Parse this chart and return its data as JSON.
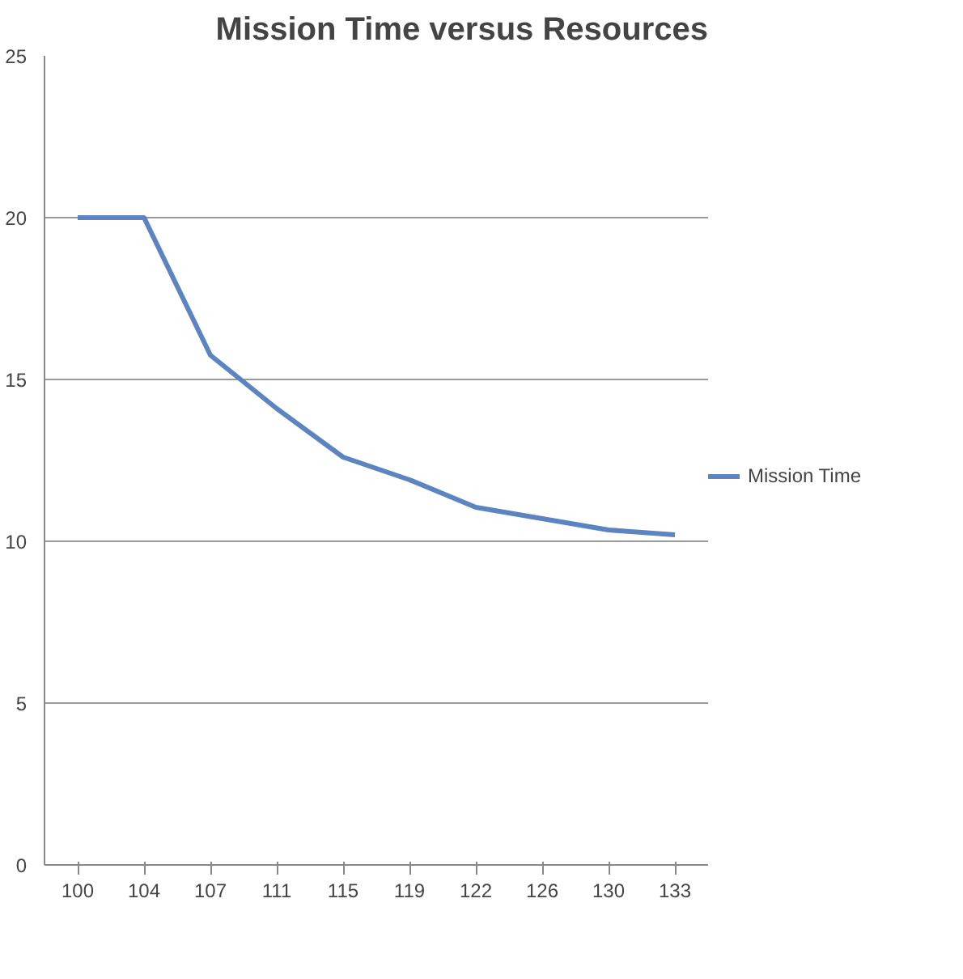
{
  "chart_data": {
    "type": "line",
    "title": "Mission Time versus Resources",
    "categories": [
      "100",
      "104",
      "107",
      "111",
      "115",
      "119",
      "122",
      "126",
      "130",
      "133"
    ],
    "series": [
      {
        "name": "Mission Time",
        "color": "#5b84c0",
        "values": [
          20,
          20,
          15.75,
          14.1,
          12.6,
          11.9,
          11.05,
          10.7,
          10.35,
          10.2
        ]
      }
    ],
    "ylim": [
      0,
      25
    ],
    "yticks": [
      0,
      5,
      10,
      15,
      20,
      25
    ],
    "grid": "y",
    "legend": "right",
    "marker": "none",
    "line_style": "solid"
  }
}
